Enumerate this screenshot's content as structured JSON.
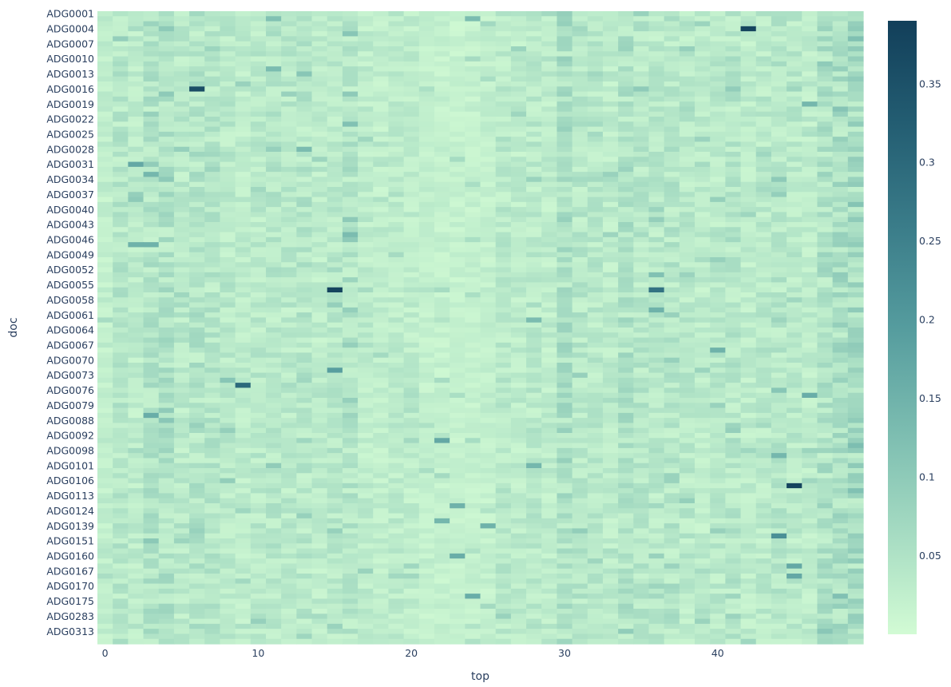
{
  "chart_data": {
    "type": "heatmap",
    "title": "",
    "xlabel": "top",
    "ylabel": "doc",
    "x_range": [
      0,
      49
    ],
    "x_ticks": [
      0,
      10,
      20,
      30,
      40
    ],
    "y_tick_labels": [
      "ADG0001",
      "ADG0004",
      "ADG0007",
      "ADG0010",
      "ADG0013",
      "ADG0016",
      "ADG0019",
      "ADG0022",
      "ADG0025",
      "ADG0028",
      "ADG0031",
      "ADG0034",
      "ADG0037",
      "ADG0040",
      "ADG0043",
      "ADG0046",
      "ADG0049",
      "ADG0052",
      "ADG0055",
      "ADG0058",
      "ADG0061",
      "ADG0064",
      "ADG0067",
      "ADG0070",
      "ADG0073",
      "ADG0076",
      "ADG0079",
      "ADG0088",
      "ADG0092",
      "ADG0098",
      "ADG0101",
      "ADG0106",
      "ADG0113",
      "ADG0124",
      "ADG0139",
      "ADG0151",
      "ADG0160",
      "ADG0167",
      "ADG0170",
      "ADG0175",
      "ADG0283",
      "ADG0313"
    ],
    "rows_per_label": 3,
    "colorscale": "darkmint",
    "colors": [
      "#d2fbd4",
      "#a5dbc2",
      "#7bbcb0",
      "#559c9e",
      "#3a7c89",
      "#235d72",
      "#123f5a"
    ],
    "zmin": 0.0,
    "zmax": 0.39,
    "colorbar_ticks": [
      0.05,
      0.1,
      0.15,
      0.2,
      0.25,
      0.3,
      0.35
    ],
    "column_baseline": [
      0.025,
      0.04,
      0.03,
      0.045,
      0.05,
      0.035,
      0.045,
      0.04,
      0.035,
      0.03,
      0.035,
      0.04,
      0.035,
      0.04,
      0.03,
      0.035,
      0.04,
      0.03,
      0.025,
      0.03,
      0.028,
      0.022,
      0.02,
      0.018,
      0.02,
      0.022,
      0.035,
      0.03,
      0.035,
      0.03,
      0.055,
      0.04,
      0.035,
      0.03,
      0.05,
      0.04,
      0.035,
      0.04,
      0.035,
      0.03,
      0.035,
      0.04,
      0.03,
      0.035,
      0.04,
      0.035,
      0.03,
      0.05,
      0.055,
      0.06
    ],
    "hot_cells": [
      {
        "row": 0,
        "col": 30,
        "value": 0.09
      },
      {
        "row": 1,
        "col": 11,
        "value": 0.12
      },
      {
        "row": 1,
        "col": 24,
        "value": 0.13
      },
      {
        "row": 2,
        "col": 3,
        "value": 0.08
      },
      {
        "row": 3,
        "col": 42,
        "value": 0.38
      },
      {
        "row": 4,
        "col": 16,
        "value": 0.11
      },
      {
        "row": 11,
        "col": 11,
        "value": 0.13
      },
      {
        "row": 12,
        "col": 13,
        "value": 0.11
      },
      {
        "row": 15,
        "col": 6,
        "value": 0.36
      },
      {
        "row": 16,
        "col": 4,
        "value": 0.1
      },
      {
        "row": 16,
        "col": 16,
        "value": 0.1
      },
      {
        "row": 18,
        "col": 46,
        "value": 0.14
      },
      {
        "row": 22,
        "col": 16,
        "value": 0.12
      },
      {
        "row": 27,
        "col": 13,
        "value": 0.13
      },
      {
        "row": 30,
        "col": 2,
        "value": 0.17
      },
      {
        "row": 32,
        "col": 3,
        "value": 0.14
      },
      {
        "row": 33,
        "col": 4,
        "value": 0.1
      },
      {
        "row": 36,
        "col": 2,
        "value": 0.09
      },
      {
        "row": 37,
        "col": 2,
        "value": 0.1
      },
      {
        "row": 39,
        "col": 36,
        "value": 0.08
      },
      {
        "row": 41,
        "col": 16,
        "value": 0.1
      },
      {
        "row": 44,
        "col": 16,
        "value": 0.13
      },
      {
        "row": 45,
        "col": 16,
        "value": 0.1
      },
      {
        "row": 46,
        "col": 2,
        "value": 0.15
      },
      {
        "row": 46,
        "col": 3,
        "value": 0.15
      },
      {
        "row": 52,
        "col": 36,
        "value": 0.12
      },
      {
        "row": 55,
        "col": 15,
        "value": 0.38
      },
      {
        "row": 55,
        "col": 36,
        "value": 0.28
      },
      {
        "row": 59,
        "col": 36,
        "value": 0.15
      },
      {
        "row": 61,
        "col": 28,
        "value": 0.13
      },
      {
        "row": 67,
        "col": 40,
        "value": 0.15
      },
      {
        "row": 71,
        "col": 15,
        "value": 0.19
      },
      {
        "row": 73,
        "col": 8,
        "value": 0.11
      },
      {
        "row": 74,
        "col": 9,
        "value": 0.3
      },
      {
        "row": 75,
        "col": 44,
        "value": 0.11
      },
      {
        "row": 76,
        "col": 46,
        "value": 0.16
      },
      {
        "row": 80,
        "col": 3,
        "value": 0.16
      },
      {
        "row": 85,
        "col": 22,
        "value": 0.17
      },
      {
        "row": 88,
        "col": 44,
        "value": 0.14
      },
      {
        "row": 90,
        "col": 28,
        "value": 0.14
      },
      {
        "row": 94,
        "col": 45,
        "value": 0.38
      },
      {
        "row": 95,
        "col": 49,
        "value": 0.12
      },
      {
        "row": 98,
        "col": 23,
        "value": 0.15
      },
      {
        "row": 101,
        "col": 22,
        "value": 0.14
      },
      {
        "row": 102,
        "col": 25,
        "value": 0.15
      },
      {
        "row": 104,
        "col": 44,
        "value": 0.22
      },
      {
        "row": 108,
        "col": 23,
        "value": 0.16
      },
      {
        "row": 110,
        "col": 45,
        "value": 0.17
      },
      {
        "row": 112,
        "col": 45,
        "value": 0.17
      },
      {
        "row": 116,
        "col": 24,
        "value": 0.16
      }
    ]
  }
}
